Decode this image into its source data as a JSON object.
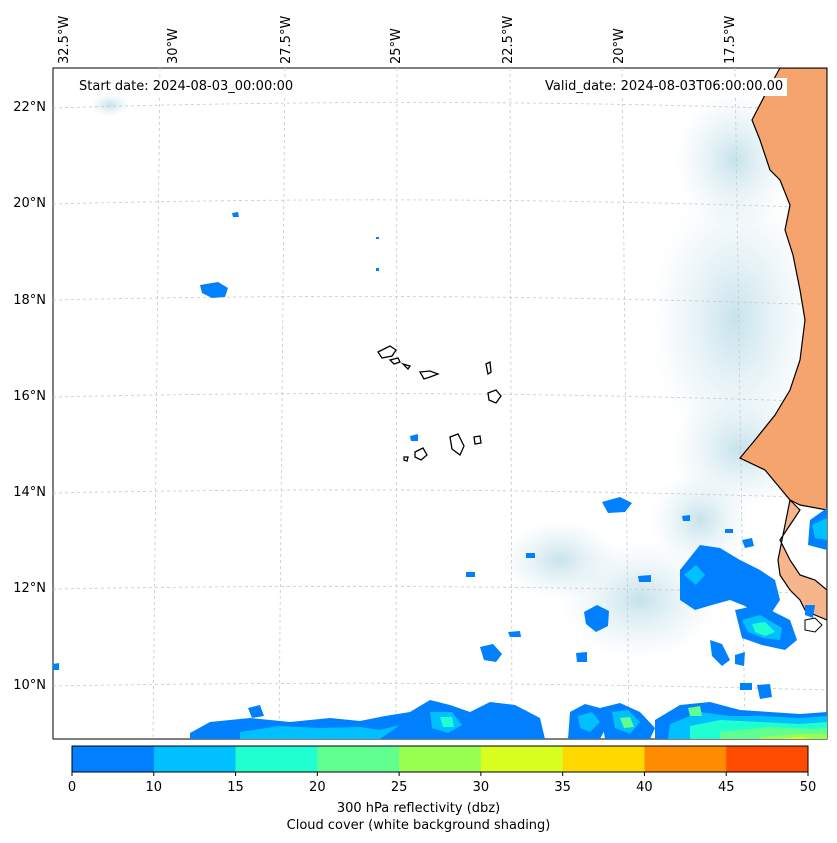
{
  "map": {
    "start_date_text": "Start date: 2024-08-03_00:00:00",
    "valid_date_text": "Valid_date: 2024-08-03T06:00:00.00",
    "lon_labels": [
      "32.5°W",
      "30°W",
      "27.5°W",
      "25°W",
      "22.5°W",
      "20°W",
      "17.5°W"
    ],
    "lat_labels": [
      "22°N",
      "20°N",
      "18°N",
      "16°N",
      "14°N",
      "12°N",
      "10°N"
    ],
    "land_color": "#f4a46c",
    "cloud_color": "#cfe6ee"
  },
  "colorbar": {
    "ticks": [
      "0",
      "10",
      "15",
      "20",
      "25",
      "30",
      "35",
      "40",
      "45",
      "50"
    ],
    "colors": [
      "#0080ff",
      "#00c0ff",
      "#20ffd0",
      "#60ff90",
      "#98ff50",
      "#d8ff20",
      "#ffd800",
      "#ff8c00",
      "#ff4c00"
    ],
    "label_line1": "300 hPa reflectivity (dbz)",
    "label_line2": "Cloud cover (white background shading)"
  }
}
